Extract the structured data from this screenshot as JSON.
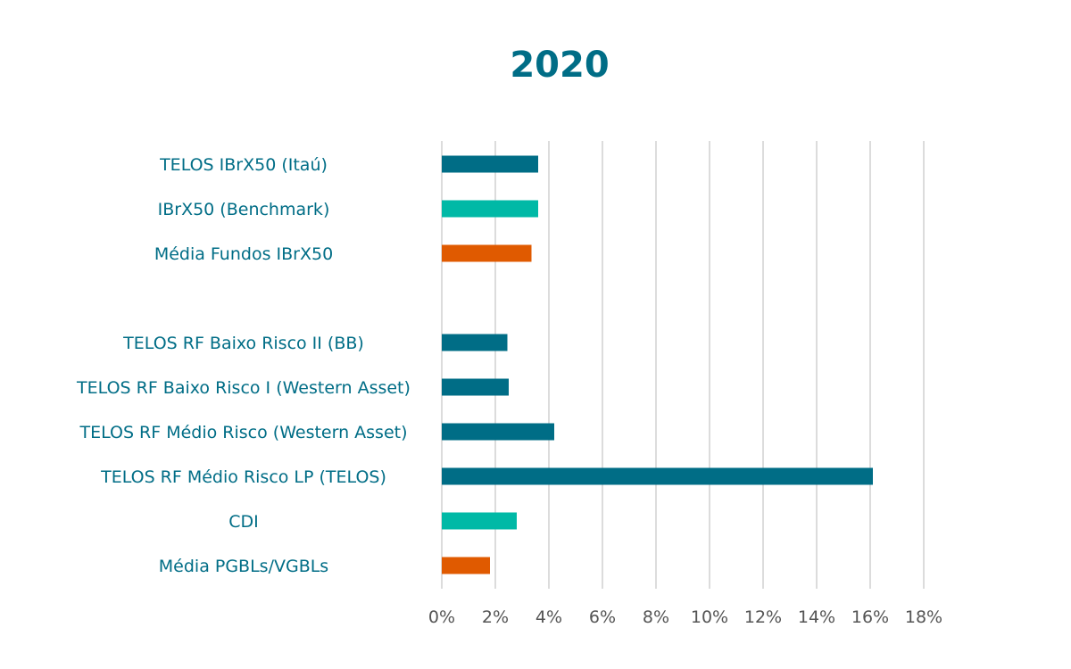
{
  "chart_data": {
    "type": "bar",
    "orientation": "horizontal",
    "title": "2020",
    "xlabel": "",
    "ylabel": "",
    "xlim": [
      0,
      18
    ],
    "x_ticks": [
      "0%",
      "2%",
      "4%",
      "6%",
      "8%",
      "10%",
      "12%",
      "14%",
      "16%",
      "18%"
    ],
    "grid": "vertical",
    "legend": "none",
    "categories": [
      "TELOS IBrX50 (Itaú)",
      "IBrX50 (Benchmark)",
      "Média Fundos IBrX50",
      "",
      "TELOS RF Baixo Risco II (BB)",
      "TELOS RF Baixo Risco I (Western Asset)",
      "TELOS RF Médio Risco (Western Asset)",
      "TELOS RF Médio Risco LP (TELOS)",
      "CDI",
      "Média PGBLs/VGBLs"
    ],
    "values": [
      3.6,
      3.6,
      3.35,
      null,
      2.45,
      2.5,
      4.2,
      16.1,
      2.8,
      1.8
    ],
    "bar_colors": [
      "#006d86",
      "#00b9a6",
      "#e05a00",
      null,
      "#006d86",
      "#006d86",
      "#006d86",
      "#006d86",
      "#00b9a6",
      "#e05a00"
    ]
  },
  "colors": {
    "title": "#006d86",
    "label": "#006d86",
    "grid": "#dcdcdc"
  }
}
